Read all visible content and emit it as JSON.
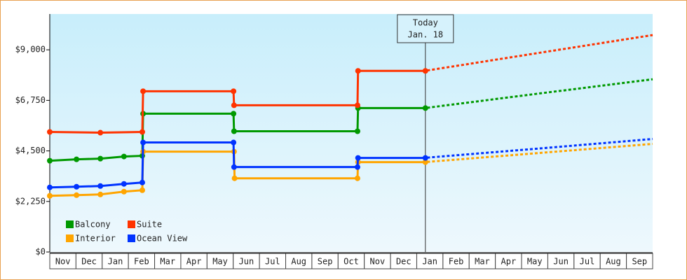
{
  "chart_data": {
    "type": "line",
    "step_like": true,
    "annotation": {
      "x": 14.33,
      "lines": [
        "Today",
        "Jan. 18"
      ]
    },
    "xlim": [
      0,
      23
    ],
    "xticks": [
      {
        "value": 0,
        "label": "Nov"
      },
      {
        "value": 1,
        "label": "Dec"
      },
      {
        "value": 2,
        "label": "Jan"
      },
      {
        "value": 3,
        "label": "Feb"
      },
      {
        "value": 4,
        "label": "Mar"
      },
      {
        "value": 5,
        "label": "Apr"
      },
      {
        "value": 6,
        "label": "May"
      },
      {
        "value": 7,
        "label": "Jun"
      },
      {
        "value": 8,
        "label": "Jul"
      },
      {
        "value": 9,
        "label": "Aug"
      },
      {
        "value": 10,
        "label": "Sep"
      },
      {
        "value": 11,
        "label": "Oct"
      },
      {
        "value": 12,
        "label": "Nov"
      },
      {
        "value": 13,
        "label": "Dec"
      },
      {
        "value": 14,
        "label": "Jan"
      },
      {
        "value": 15,
        "label": "Feb"
      },
      {
        "value": 16,
        "label": "Mar"
      },
      {
        "value": 17,
        "label": "Apr"
      },
      {
        "value": 18,
        "label": "May"
      },
      {
        "value": 19,
        "label": "Jun"
      },
      {
        "value": 20,
        "label": "Jul"
      },
      {
        "value": 21,
        "label": "Aug"
      },
      {
        "value": 22,
        "label": "Sep"
      }
    ],
    "ylim": [
      0,
      10594
    ],
    "yticks": [
      {
        "value": 0,
        "label": "$0"
      },
      {
        "value": 2250,
        "label": "$2,250"
      },
      {
        "value": 4500,
        "label": "$4,500"
      },
      {
        "value": 6750,
        "label": "$6,750"
      },
      {
        "value": 9000,
        "label": "$9,000"
      }
    ],
    "series": [
      {
        "name": "Balcony",
        "color": "#009900",
        "x": [
          0,
          1.02,
          1.93,
          2.83,
          3.53,
          3.56,
          7.01,
          7.03,
          11.74,
          11.76,
          14.33
        ],
        "values": [
          4062,
          4125,
          4156,
          4250,
          4281,
          6156,
          6156,
          5375,
          5375,
          6406,
          6406
        ],
        "forecast_x": [
          14.4,
          18.7,
          23
        ],
        "forecast_values": [
          6420,
          7060,
          7688
        ]
      },
      {
        "name": "Suite",
        "color": "#ff3300",
        "x": [
          0,
          1.93,
          3.53,
          3.56,
          7.01,
          7.03,
          11.74,
          11.76,
          14.33
        ],
        "values": [
          5344,
          5312,
          5344,
          7156,
          7156,
          6531,
          6531,
          8062,
          8062
        ],
        "forecast_x": [
          14.4,
          18.7,
          23
        ],
        "forecast_values": [
          8080,
          8870,
          9656
        ]
      },
      {
        "name": "Interior",
        "color": "#ffa500",
        "x": [
          0,
          1.02,
          1.93,
          2.83,
          3.53,
          3.56,
          7.03,
          7.05,
          11.74,
          11.76,
          14.33
        ],
        "values": [
          2500,
          2531,
          2562,
          2687,
          2750,
          4469,
          4469,
          3281,
          3281,
          4000,
          4000
        ],
        "forecast_x": [
          14.4,
          18.7,
          23
        ],
        "forecast_values": [
          4010,
          4410,
          4812
        ]
      },
      {
        "name": "Ocean View",
        "color": "#0033ff",
        "x": [
          0,
          1.02,
          1.93,
          2.83,
          3.53,
          3.56,
          7.01,
          7.03,
          11.74,
          11.76,
          14.33
        ],
        "values": [
          2875,
          2906,
          2937,
          3031,
          3094,
          4875,
          4875,
          3781,
          3781,
          4187,
          4187
        ],
        "forecast_x": [
          14.4,
          18.7,
          23
        ],
        "forecast_values": [
          4200,
          4610,
          5031
        ]
      }
    ]
  }
}
